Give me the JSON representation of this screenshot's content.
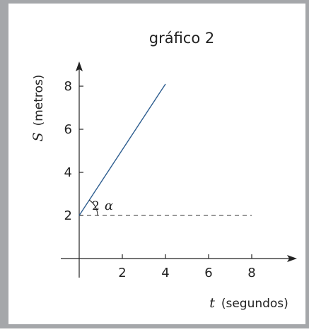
{
  "chart_data": {
    "type": "line",
    "title": "gráfico 2",
    "xlabel": {
      "var": "t",
      "unit": "(segundos)"
    },
    "ylabel": {
      "var": "S",
      "unit": "(metros)"
    },
    "x_ticks": [
      "2",
      "4",
      "6",
      "8"
    ],
    "y_ticks": [
      "2",
      "4",
      "6",
      "8"
    ],
    "xlim": [
      0,
      10
    ],
    "ylim": [
      0,
      10
    ],
    "grid": false,
    "series": [
      {
        "x": [
          0,
          4
        ],
        "y": [
          2,
          8.1
        ]
      }
    ],
    "reference_line": {
      "y": 2,
      "x": [
        0,
        8
      ],
      "style": "dashed"
    },
    "angle_label": {
      "coef": "2",
      "symbol": "α"
    },
    "colors": {
      "series": "#2d5d8f",
      "axis": "#222222",
      "frame": "#a5a7aa"
    }
  }
}
